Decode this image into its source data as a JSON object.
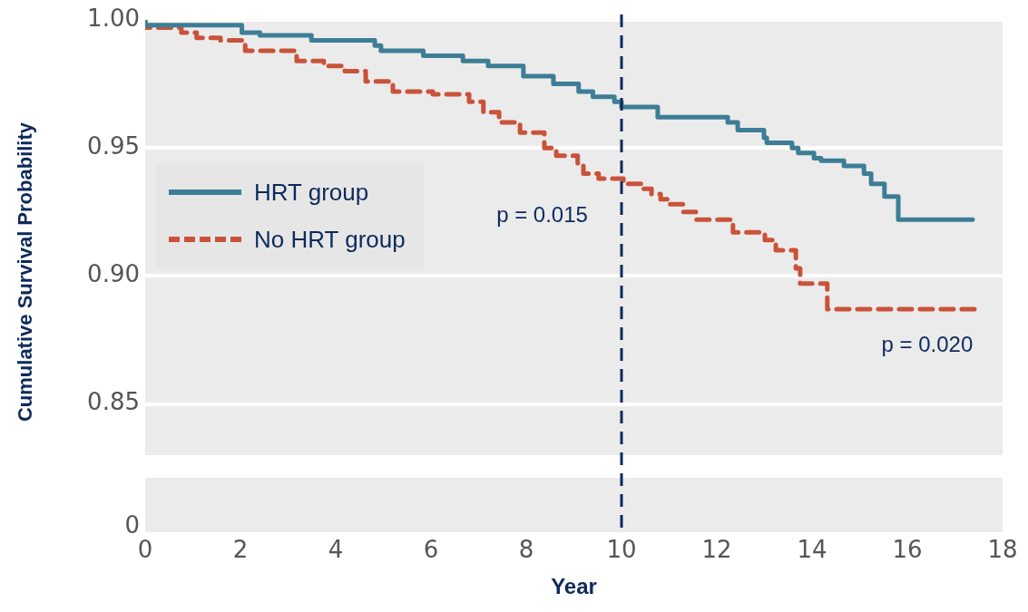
{
  "chart_data": {
    "type": "step",
    "xlabel": "Year",
    "ylabel": "Cumulative Survival Probability",
    "xlim": [
      0,
      18
    ],
    "xticks": [
      0,
      2,
      4,
      6,
      8,
      10,
      12,
      14,
      16,
      18
    ],
    "ylim": [
      0.83,
      1.0
    ],
    "yticks": [
      {
        "value": 0.85,
        "label": "0.85"
      },
      {
        "value": 0.9,
        "label": "0.90"
      },
      {
        "value": 0.95,
        "label": "0.95"
      },
      {
        "value": 1.0,
        "label": "1.00"
      }
    ],
    "grid": "y",
    "legend": "left",
    "series": [
      {
        "name": "HRT group",
        "color": "#3d7d96",
        "line_style": "solid",
        "x": [
          0,
          2.03,
          2.41,
          3.49,
          4.82,
          4.95,
          5.84,
          6.67,
          7.2,
          7.94,
          8.57,
          9.1,
          9.4,
          9.85,
          10.0,
          10.76,
          12.23,
          12.44,
          12.99,
          13.05,
          13.58,
          13.71,
          14.04,
          14.19,
          14.67,
          15.09,
          15.24,
          15.52,
          15.81,
          16.03,
          17.37
        ],
        "values": [
          1.0,
          0.998,
          0.995,
          0.994,
          0.992,
          0.99,
          0.988,
          0.986,
          0.984,
          0.982,
          0.978,
          0.975,
          0.972,
          0.97,
          0.968,
          0.966,
          0.962,
          0.96,
          0.957,
          0.954,
          0.952,
          0.95,
          0.948,
          0.946,
          0.945,
          0.943,
          0.94,
          0.936,
          0.931,
          0.922,
          0.922
        ]
      },
      {
        "name": "No HRT group",
        "color": "#c9533a",
        "line_style": "dashed",
        "x": [
          0,
          0.76,
          1.08,
          1.58,
          2.1,
          3.18,
          3.75,
          4.19,
          4.63,
          5.2,
          6.04,
          6.8,
          7.1,
          7.43,
          7.87,
          8.38,
          8.63,
          9.08,
          9.2,
          9.52,
          10.04,
          10.44,
          10.63,
          10.82,
          10.99,
          11.3,
          11.56,
          12.34,
          13.01,
          13.24,
          13.66,
          13.75,
          14.32,
          16.1,
          17.43
        ],
        "values": [
          1.0,
          0.997,
          0.995,
          0.993,
          0.992,
          0.988,
          0.984,
          0.982,
          0.98,
          0.976,
          0.972,
          0.971,
          0.968,
          0.964,
          0.96,
          0.956,
          0.95,
          0.947,
          0.944,
          0.94,
          0.938,
          0.936,
          0.934,
          0.932,
          0.93,
          0.928,
          0.925,
          0.922,
          0.917,
          0.914,
          0.91,
          0.903,
          0.897,
          0.887,
          0.887
        ]
      }
    ],
    "ref_lines": [
      {
        "axis": "x",
        "value": 10,
        "color": "#0d2a5c",
        "line_style": "dashed"
      }
    ],
    "annotations": [
      "p = 0.015",
      "p = 0.020",
      "0"
    ]
  }
}
